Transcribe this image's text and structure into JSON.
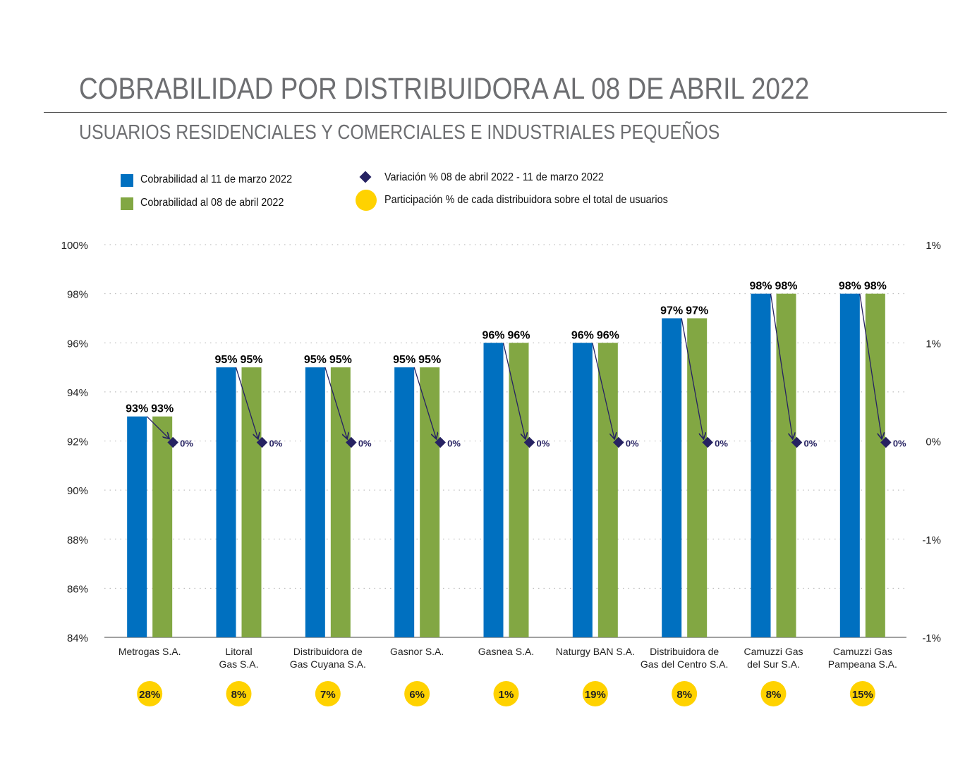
{
  "header": {
    "title": "COBRABILIDAD POR DISTRIBUIDORA AL 08 DE ABRIL 2022",
    "subtitle": "USUARIOS RESIDENCIALES Y COMERCIALES E INDUSTRIALES PEQUEÑOS"
  },
  "legend": {
    "blue": "Cobrabilidad  al 11 de marzo 2022",
    "green": "Cobrabilidad al 08 de abril 2022",
    "diamond": "Variación % 08 de abril 2022 - 11 de marzo 2022",
    "circle": "Participación % de cada distribuidora sobre el total de usuarios"
  },
  "colors": {
    "blue": "#0070c0",
    "green": "#82a743",
    "diamond": "#262262",
    "circle": "#ffd200"
  },
  "chart_data": {
    "type": "bar",
    "categories": [
      [
        "Metrogas S.A."
      ],
      [
        "Litoral",
        "Gas S.A."
      ],
      [
        "Distribuidora de",
        "Gas Cuyana S.A."
      ],
      [
        "Gasnor S.A."
      ],
      [
        "Gasnea S.A."
      ],
      [
        "Naturgy BAN  S.A."
      ],
      [
        "Distribuidora de",
        "Gas del Centro S.A."
      ],
      [
        "Camuzzi Gas",
        "del Sur S.A."
      ],
      [
        "Camuzzi Gas",
        "Pampeana S.A."
      ]
    ],
    "series": [
      {
        "name": "Cobrabilidad  al 11 de marzo 2022",
        "values": [
          93,
          95,
          95,
          95,
          96,
          96,
          97,
          98,
          98
        ],
        "labels": [
          "93%",
          "95%",
          "95%",
          "95%",
          "96%",
          "96%",
          "97%",
          "98%",
          "98%"
        ]
      },
      {
        "name": "Cobrabilidad al 08 de abril 2022",
        "values": [
          93,
          95,
          95,
          95,
          96,
          96,
          97,
          98,
          98
        ],
        "labels": [
          "93%",
          "95%",
          "95%",
          "95%",
          "96%",
          "96%",
          "97%",
          "98%",
          "98%"
        ]
      }
    ],
    "variation": {
      "name": "Variación % 08 de abril 2022 - 11 de marzo 2022",
      "values": [
        0,
        0,
        0,
        0,
        0,
        0,
        0,
        0,
        0
      ],
      "labels": [
        "0%",
        "0%",
        "0%",
        "0%",
        "0%",
        "0%",
        "0%",
        "0%",
        "0%"
      ]
    },
    "participation": {
      "name": "Participación % de cada distribuidora sobre el total de usuarios",
      "labels": [
        "28%",
        "8%",
        "7%",
        "6%",
        "1%",
        "19%",
        "8%",
        "8%",
        "15%"
      ]
    },
    "y_left": {
      "range": [
        84,
        100
      ],
      "ticks": [
        "84%",
        "86%",
        "88%",
        "90%",
        "92%",
        "94%",
        "96%",
        "98%",
        "100%"
      ]
    },
    "y_right": {
      "ticks": [
        "-1%",
        "-1%",
        "0%",
        "1%",
        "1%"
      ]
    },
    "grid": "dotted horizontal",
    "legend_position": "top"
  }
}
